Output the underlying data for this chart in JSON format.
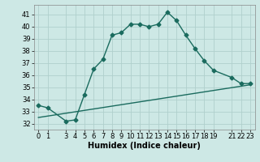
{
  "title": "",
  "xlabel": "Humidex (Indice chaleur)",
  "ylabel": "",
  "bg_color": "#cde8e5",
  "grid_color": "#b0d0cc",
  "line_color": "#1a6b5e",
  "xticks": [
    0,
    1,
    3,
    4,
    5,
    6,
    7,
    8,
    9,
    10,
    11,
    12,
    13,
    14,
    15,
    16,
    17,
    18,
    19,
    21,
    22,
    23
  ],
  "xlim": [
    -0.5,
    23.5
  ],
  "ylim": [
    31.5,
    41.8
  ],
  "yticks": [
    32,
    33,
    34,
    35,
    36,
    37,
    38,
    39,
    40,
    41
  ],
  "line1_x": [
    0,
    1,
    3,
    4,
    5,
    6,
    7,
    8,
    9,
    10,
    11,
    12,
    13,
    14,
    15,
    16,
    17,
    18,
    19,
    21,
    22,
    23
  ],
  "line1_y": [
    33.5,
    33.3,
    32.2,
    32.3,
    34.4,
    36.5,
    37.3,
    39.3,
    39.5,
    40.2,
    40.2,
    40.0,
    40.2,
    41.2,
    40.5,
    39.3,
    38.2,
    37.2,
    36.4,
    35.8,
    35.3,
    35.3
  ],
  "line2_x": [
    0,
    23
  ],
  "line2_y": [
    32.5,
    35.2
  ],
  "marker": "D",
  "marker_size": 2.5,
  "line_width": 1.0,
  "tick_fontsize": 6.0,
  "xlabel_fontsize": 7.0,
  "xlabel_fontweight": "bold"
}
